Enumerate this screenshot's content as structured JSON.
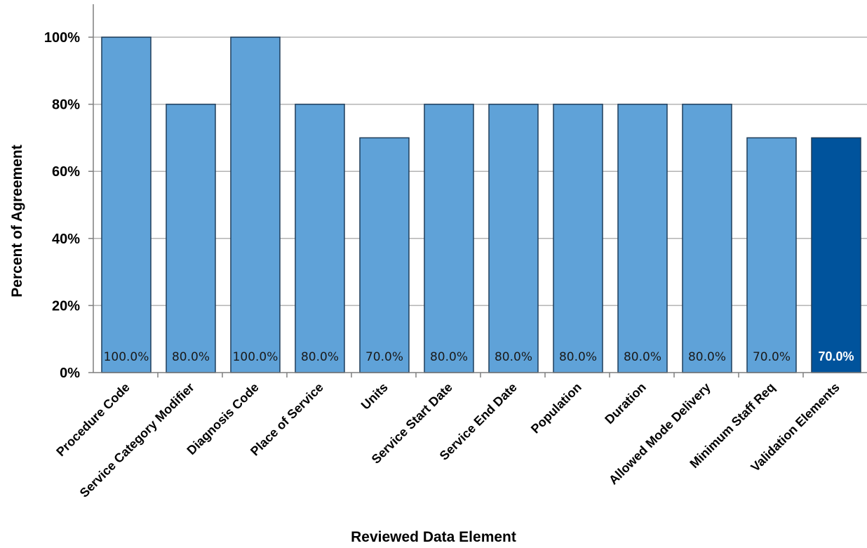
{
  "chart_data": {
    "type": "bar",
    "title": "",
    "xlabel": "Reviewed Data Element",
    "ylabel": "Percent of Agreement",
    "ylim": [
      0,
      100
    ],
    "yticks": [
      "0%",
      "20%",
      "40%",
      "60%",
      "80%",
      "100%"
    ],
    "ytick_values": [
      0,
      20,
      40,
      60,
      80,
      100
    ],
    "grid": true,
    "categories": [
      "Procedure Code",
      "Service Category Modifier",
      "Diagnosis Code",
      "Place of Service",
      "Units",
      "Service Start Date",
      "Service End Date",
      "Population",
      "Duration",
      "Allowed Mode Delivery",
      "Minimum Staff Req",
      "Validation Elements"
    ],
    "values": [
      100,
      80,
      100,
      80,
      70,
      80,
      80,
      80,
      80,
      80,
      70,
      70
    ],
    "data_labels": [
      "100.0%",
      "80.0%",
      "100.0%",
      "80.0%",
      "70.0%",
      "80.0%",
      "80.0%",
      "80.0%",
      "80.0%",
      "80.0%",
      "70.0%",
      "70.0%"
    ],
    "highlighted_index": 11,
    "colors": {
      "bar": "#5fa2d8",
      "bar_highlight": "#00539c",
      "bar_stroke": "#1f3d5a",
      "grid": "#b3b3b3",
      "axis": "#7f7f7f"
    }
  }
}
